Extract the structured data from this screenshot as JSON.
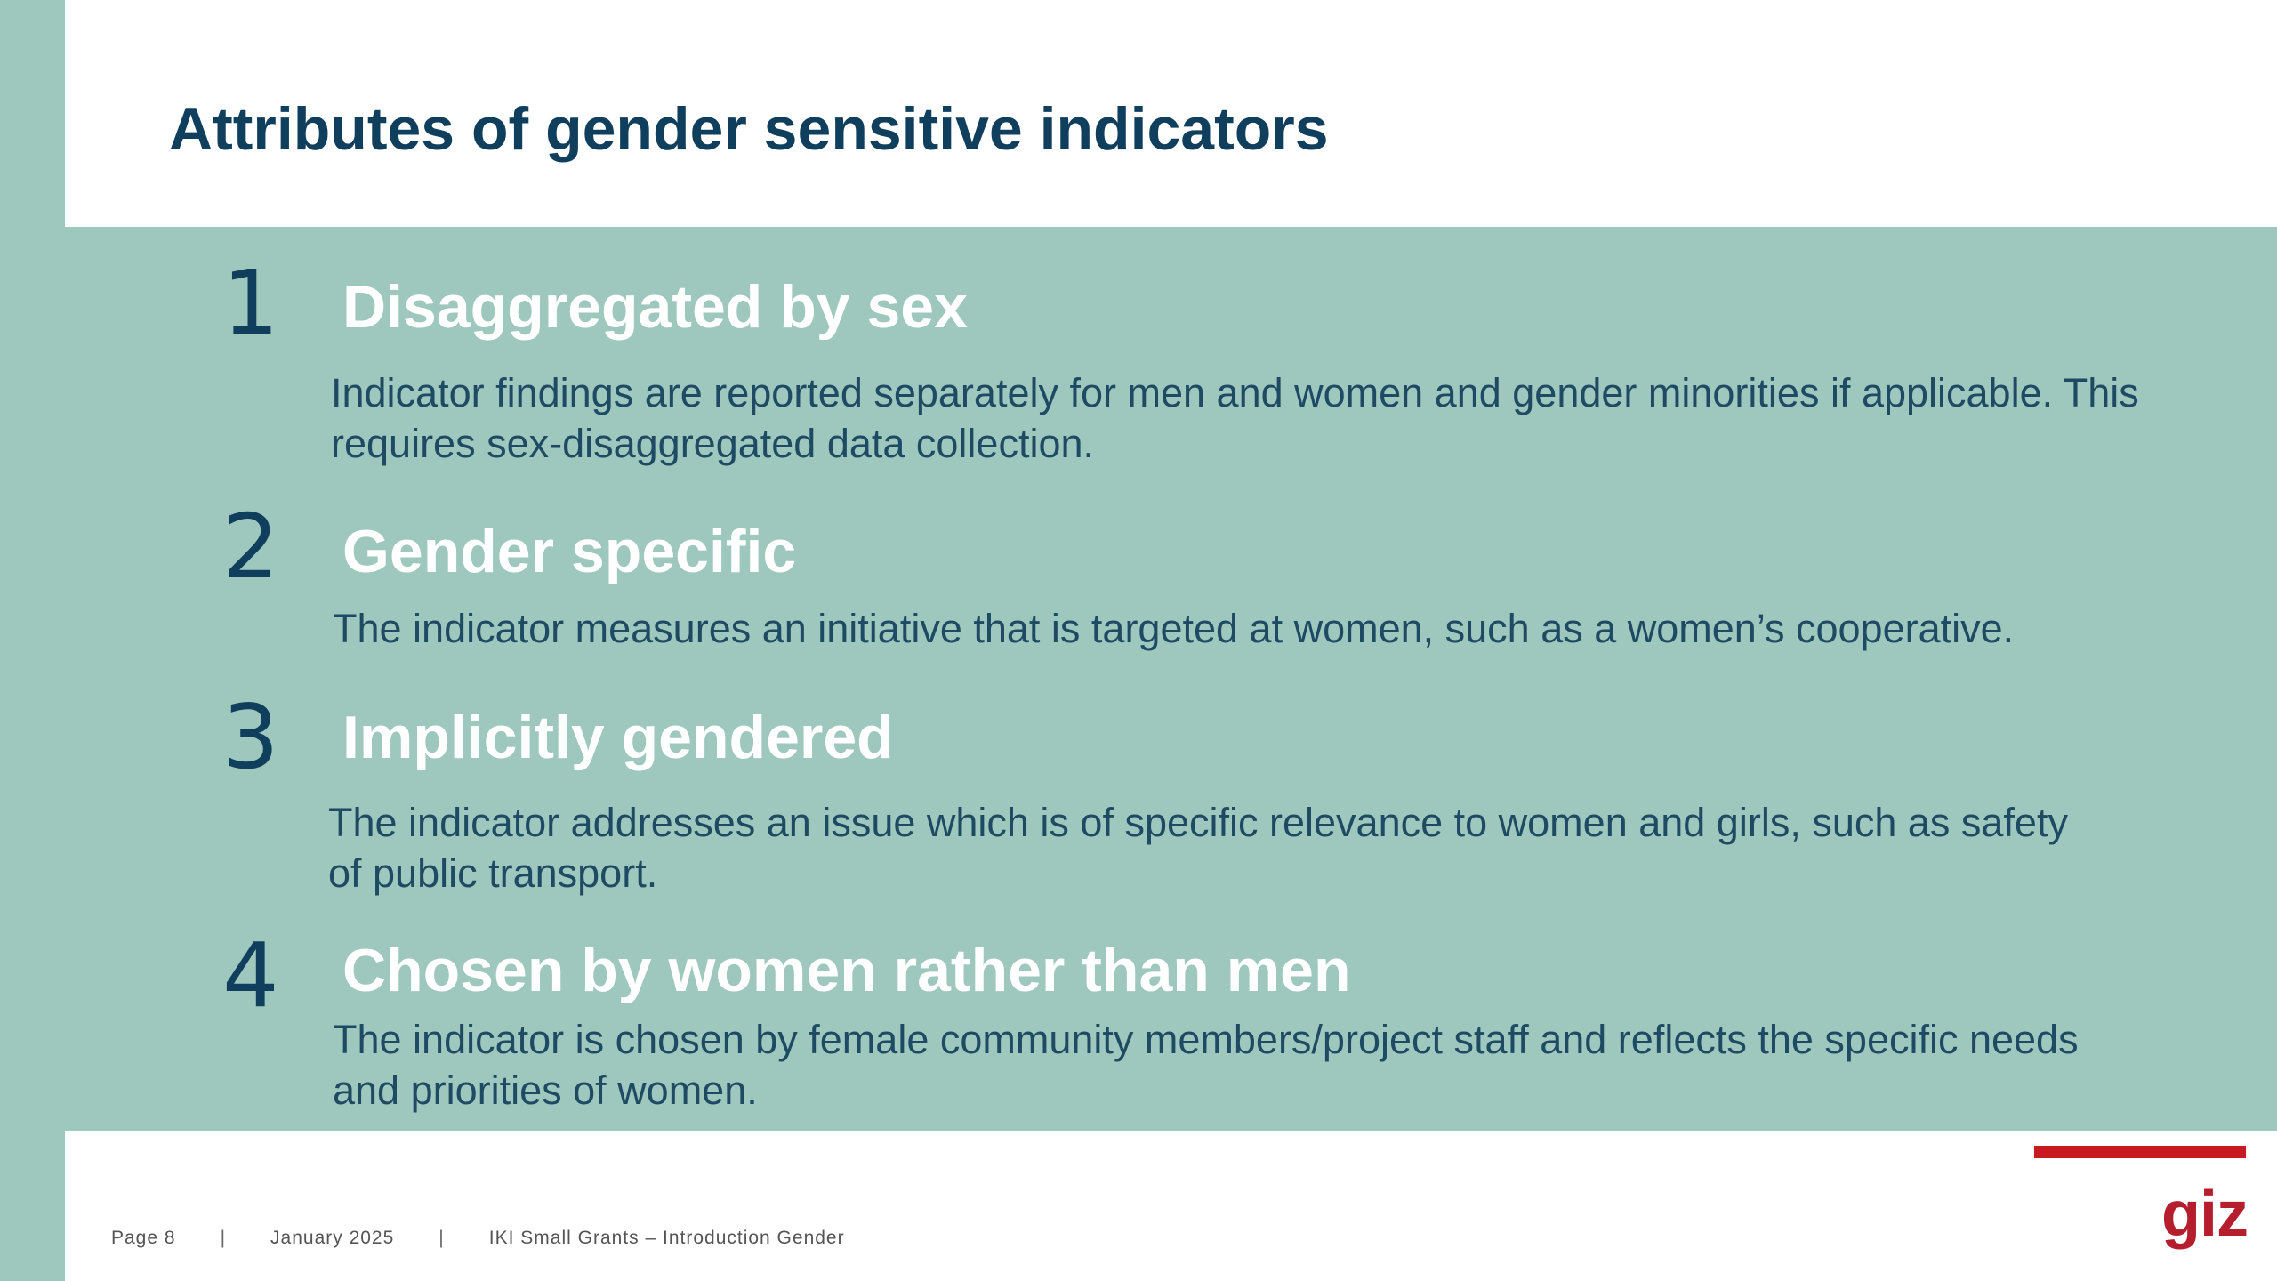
{
  "slide": {
    "title": "Attributes of gender sensitive indicators"
  },
  "items": [
    {
      "number": "1",
      "heading": "Disaggregated by sex",
      "description": "Indicator findings are reported separately for men and women and gender minorities if applicable. This requires sex-disaggregated data collection."
    },
    {
      "number": "2",
      "heading": "Gender specific",
      "description": "The indicator measures an initiative that is targeted at women, such as a women’s cooperative."
    },
    {
      "number": "3",
      "heading": "Implicitly gendered",
      "description": "The indicator addresses an issue which is of specific relevance to women and girls, such as safety of public transport."
    },
    {
      "number": "4",
      "heading": "Chosen by women rather than men",
      "description": "The indicator is chosen by female community members/project staff and reflects the specific needs and priorities of women."
    }
  ],
  "footer": {
    "page": "Page 8",
    "separator": "|",
    "date": "January 2025",
    "project": "IKI Small Grants – Introduction Gender"
  },
  "logo": {
    "text": "giz"
  },
  "colors": {
    "background": "#9ec7bd",
    "title": "#0f3f5c",
    "accent_red": "#c8191f"
  }
}
